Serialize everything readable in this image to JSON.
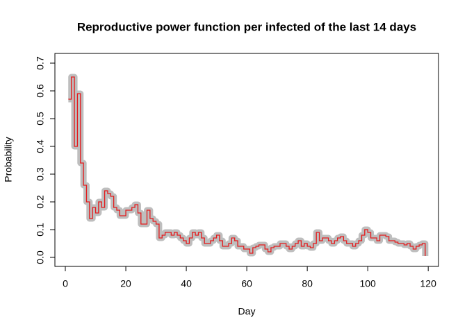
{
  "chart_data": {
    "type": "step",
    "title": "Reproductive power function per infected of the last 14 days",
    "x_label": "Day",
    "y_label": "Probability",
    "x": [
      1,
      2,
      3,
      4,
      5,
      6,
      7,
      8,
      9,
      10,
      11,
      12,
      13,
      14,
      15,
      16,
      17,
      18,
      19,
      20,
      21,
      22,
      23,
      24,
      25,
      26,
      27,
      28,
      29,
      30,
      31,
      32,
      33,
      34,
      35,
      36,
      37,
      38,
      39,
      40,
      41,
      42,
      43,
      44,
      45,
      46,
      47,
      48,
      49,
      50,
      51,
      52,
      53,
      54,
      55,
      56,
      57,
      58,
      59,
      60,
      61,
      62,
      63,
      64,
      65,
      66,
      67,
      68,
      69,
      70,
      71,
      72,
      73,
      74,
      75,
      76,
      77,
      78,
      79,
      80,
      81,
      82,
      83,
      84,
      85,
      86,
      87,
      88,
      89,
      90,
      91,
      92,
      93,
      94,
      95,
      96,
      97,
      98,
      99,
      100,
      101,
      102,
      103,
      104,
      105,
      106,
      107,
      108,
      109,
      110,
      111,
      112,
      113,
      114,
      115,
      116,
      117,
      118,
      119
    ],
    "series": [
      {
        "color": "#e41a1c",
        "values": [
          0.57,
          0.65,
          0.4,
          0.59,
          0.34,
          0.26,
          0.2,
          0.14,
          0.18,
          0.16,
          0.2,
          0.18,
          0.24,
          0.23,
          0.22,
          0.18,
          0.17,
          0.15,
          0.15,
          0.17,
          0.17,
          0.18,
          0.19,
          0.16,
          0.12,
          0.12,
          0.17,
          0.14,
          0.13,
          0.12,
          0.07,
          0.08,
          0.09,
          0.09,
          0.08,
          0.09,
          0.08,
          0.07,
          0.06,
          0.05,
          0.07,
          0.09,
          0.08,
          0.09,
          0.07,
          0.05,
          0.05,
          0.06,
          0.07,
          0.08,
          0.06,
          0.04,
          0.04,
          0.05,
          0.07,
          0.06,
          0.04,
          0.04,
          0.03,
          0.03,
          0.015,
          0.035,
          0.04,
          0.045,
          0.045,
          0.03,
          0.02,
          0.035,
          0.04,
          0.04,
          0.05,
          0.05,
          0.04,
          0.03,
          0.04,
          0.05,
          0.06,
          0.04,
          0.05,
          0.04,
          0.035,
          0.05,
          0.09,
          0.06,
          0.07,
          0.07,
          0.06,
          0.05,
          0.06,
          0.07,
          0.075,
          0.06,
          0.05,
          0.05,
          0.04,
          0.05,
          0.06,
          0.08,
          0.1,
          0.09,
          0.07,
          0.07,
          0.06,
          0.08,
          0.08,
          0.075,
          0.06,
          0.06,
          0.055,
          0.05,
          0.05,
          0.045,
          0.05,
          0.04,
          0.03,
          0.04,
          0.045,
          0.05,
          0.005
        ]
      }
    ],
    "xlim": [
      -3.45,
      123.4
    ],
    "ylim": [
      -0.0325,
      0.735
    ],
    "xticks": [
      0,
      20,
      40,
      60,
      80,
      100,
      120
    ],
    "yticks": [
      {
        "value": 0,
        "label": "0.0"
      },
      0.1,
      0.2,
      0.3,
      0.4,
      0.5,
      0.6,
      0.7
    ],
    "spread_color": "#bebebe"
  }
}
